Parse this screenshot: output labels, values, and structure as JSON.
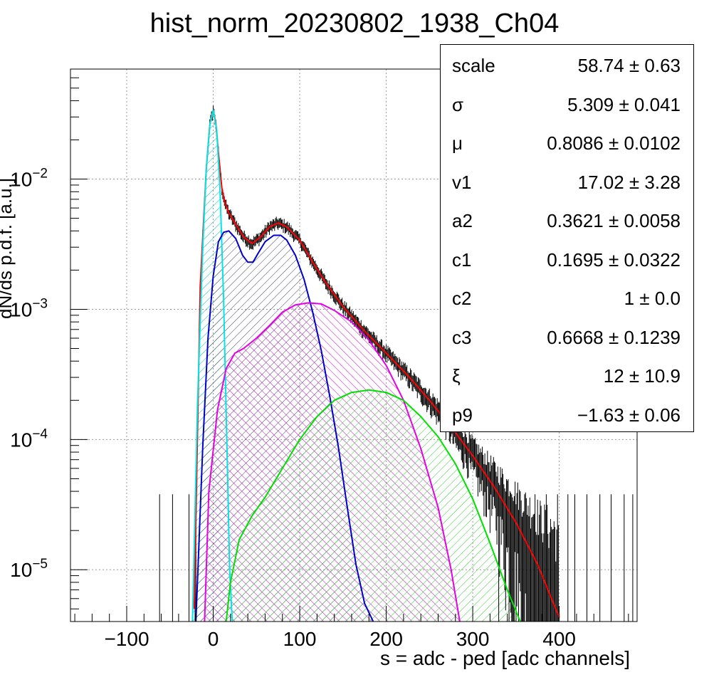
{
  "chart_data": {
    "type": "line",
    "title": "hist_norm_20230802_1938_Ch04",
    "xlabel": "s = adc - ped [adc channels]",
    "ylabel": "dN/ds p.d.f. [a.u.]",
    "xlim": [
      -165,
      490
    ],
    "ylim": [
      4e-06,
      0.07
    ],
    "yscale": "log",
    "grid": true,
    "x_ticks": [
      "−100",
      "0",
      "100",
      "200",
      "300",
      "400"
    ],
    "y_ticks": [
      {
        "base": "10",
        "exp": "−2",
        "value": 0.01
      },
      {
        "base": "10",
        "exp": "−3",
        "value": 0.001
      },
      {
        "base": "10",
        "exp": "−4",
        "value": 0.0001
      },
      {
        "base": "10",
        "exp": "−5",
        "value": 1e-05
      }
    ],
    "series": [
      {
        "color": "#ff0000",
        "fill": false,
        "x": [
          -22,
          -15,
          -8,
          -4,
          0,
          3,
          6,
          10,
          14,
          18,
          25,
          35,
          45,
          55,
          65,
          75,
          85,
          100,
          115,
          130,
          150,
          175,
          200,
          225,
          250,
          275,
          300,
          325,
          350,
          375,
          400
        ],
        "y": [
          5e-06,
          0.0015,
          0.012,
          0.026,
          0.034,
          0.027,
          0.016,
          0.0085,
          0.0064,
          0.0055,
          0.0046,
          0.0036,
          0.0032,
          0.0036,
          0.0043,
          0.0046,
          0.0043,
          0.0034,
          0.0023,
          0.0016,
          0.00105,
          0.00068,
          0.00046,
          0.00031,
          0.0002,
          0.000125,
          7.5e-05,
          4.3e-05,
          2.3e-05,
          1.1e-05,
          4.3e-06
        ]
      },
      {
        "color": "#00e5e5",
        "fill": true,
        "hatch": "#00bcbc",
        "x": [
          -24,
          -18,
          -12,
          -8,
          -4,
          0,
          4,
          8,
          12,
          16,
          19,
          22
        ],
        "y": [
          4e-06,
          0.0002,
          0.003,
          0.012,
          0.026,
          0.034,
          0.024,
          0.008,
          0.0012,
          8e-05,
          1e-05,
          4e-06
        ]
      },
      {
        "color": "#0000cc",
        "fill": true,
        "hatch": "#444466",
        "x": [
          -20,
          -12,
          -6,
          0,
          6,
          12,
          18,
          26,
          34,
          40,
          46,
          52,
          60,
          70,
          78,
          85,
          95,
          105,
          115,
          125,
          135,
          145,
          155,
          165,
          175,
          185
        ],
        "y": [
          4e-06,
          9e-05,
          0.0006,
          0.0018,
          0.0033,
          0.0039,
          0.004,
          0.0035,
          0.0026,
          0.0023,
          0.0023,
          0.0027,
          0.0033,
          0.0037,
          0.0037,
          0.0034,
          0.0026,
          0.0017,
          0.00095,
          0.00048,
          0.00021,
          8.5e-05,
          3e-05,
          1.1e-05,
          5.5e-06,
          4e-06
        ]
      },
      {
        "color": "#e600e6",
        "fill": true,
        "hatch": "#cc00cc",
        "x": [
          -10,
          -5,
          5,
          15,
          25,
          35,
          50,
          65,
          80,
          95,
          110,
          125,
          140,
          160,
          180,
          200,
          220,
          240,
          260,
          275,
          285
        ],
        "y": [
          4e-06,
          4e-05,
          0.00017,
          0.00035,
          0.00046,
          0.0005,
          0.0006,
          0.00075,
          0.00095,
          0.00108,
          0.00112,
          0.0011,
          0.00098,
          0.0008,
          0.00058,
          0.00037,
          0.0002,
          8.5e-05,
          3e-05,
          1e-05,
          4e-06
        ]
      },
      {
        "color": "#00e000",
        "fill": true,
        "hatch": "#33cc33",
        "x": [
          15,
          20,
          30,
          45,
          60,
          80,
          100,
          120,
          140,
          160,
          180,
          200,
          220,
          240,
          260,
          280,
          300,
          320,
          340,
          355
        ],
        "y": [
          4e-06,
          8e-06,
          1.7e-05,
          2.6e-05,
          3.6e-05,
          6e-05,
          0.0001,
          0.00015,
          0.0002,
          0.00023,
          0.00024,
          0.00023,
          0.0002,
          0.00015,
          0.000105,
          6.5e-05,
          3.5e-05,
          1.6e-05,
          7e-06,
          4e-06
        ]
      }
    ]
  },
  "stats": [
    {
      "name": "scale",
      "value": "58.74 ± 0.63"
    },
    {
      "name": "σ",
      "value": "5.309 ± 0.041"
    },
    {
      "name": "μ",
      "value": "0.8086 ± 0.0102"
    },
    {
      "name": "v1",
      "value": "17.02 ± 3.28"
    },
    {
      "name": "a2",
      "value": "0.3621 ± 0.0058"
    },
    {
      "name": "c1",
      "value": "0.1695 ± 0.0322"
    },
    {
      "name": "c2",
      "value": "1 ± 0.0"
    },
    {
      "name": "c3",
      "value": "0.6668 ± 0.1239"
    },
    {
      "name": "ξ",
      "value": "12 ± 10.9"
    },
    {
      "name": "p9",
      "value": "−1.63 ± 0.06"
    }
  ]
}
